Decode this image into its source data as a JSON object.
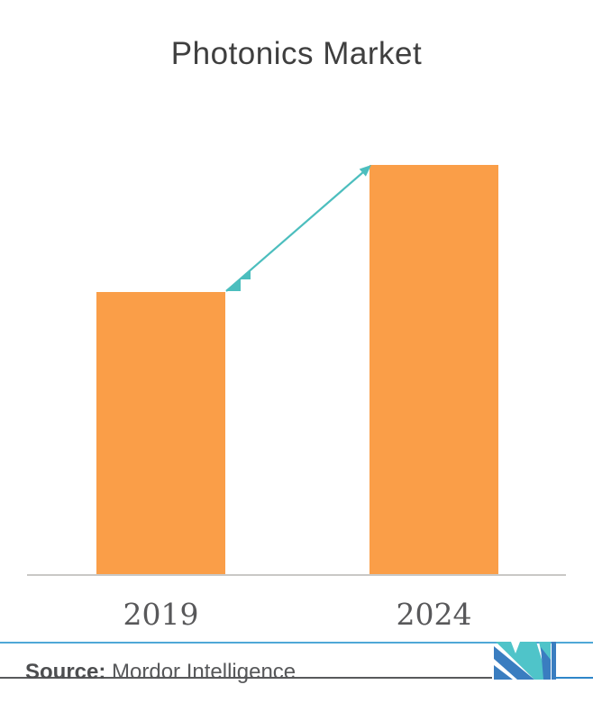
{
  "chart_data": {
    "type": "bar",
    "title": "Photonics Market",
    "categories": [
      "2019",
      "2024"
    ],
    "values": [
      69,
      100
    ],
    "values_note": "no y-axis or data labels shown; values are relative bar heights as % of the 2024 bar",
    "xlabel": "",
    "ylabel": "",
    "ylim": [
      0,
      100
    ],
    "grid": false,
    "legend": false,
    "bar_color": "#fa9e48",
    "annotations": [
      {
        "type": "growth-arrow",
        "from": "top of 2019 bar",
        "to": "top of 2024 bar",
        "style": "diagonal line with arrowhead and stair-step accents",
        "color": "#4cbebe"
      }
    ]
  },
  "title": {
    "text": "Photonics Market",
    "color": "#3f3f3f"
  },
  "axis": {
    "baseline_color": "#c9c8c6",
    "tick_label_color": "#58585a"
  },
  "footer": {
    "source_label": "Source:",
    "source_text": " Mordor Intelligence",
    "text_color": "#57585a",
    "separator_color": "#4fa8d7",
    "rule_gray_color": "#58595b",
    "rule_blue_color": "#2e86c9",
    "logo": "mordor-intelligence-logo",
    "logo_teal": "#4fc4c9",
    "logo_blue": "#3a7dc0"
  }
}
